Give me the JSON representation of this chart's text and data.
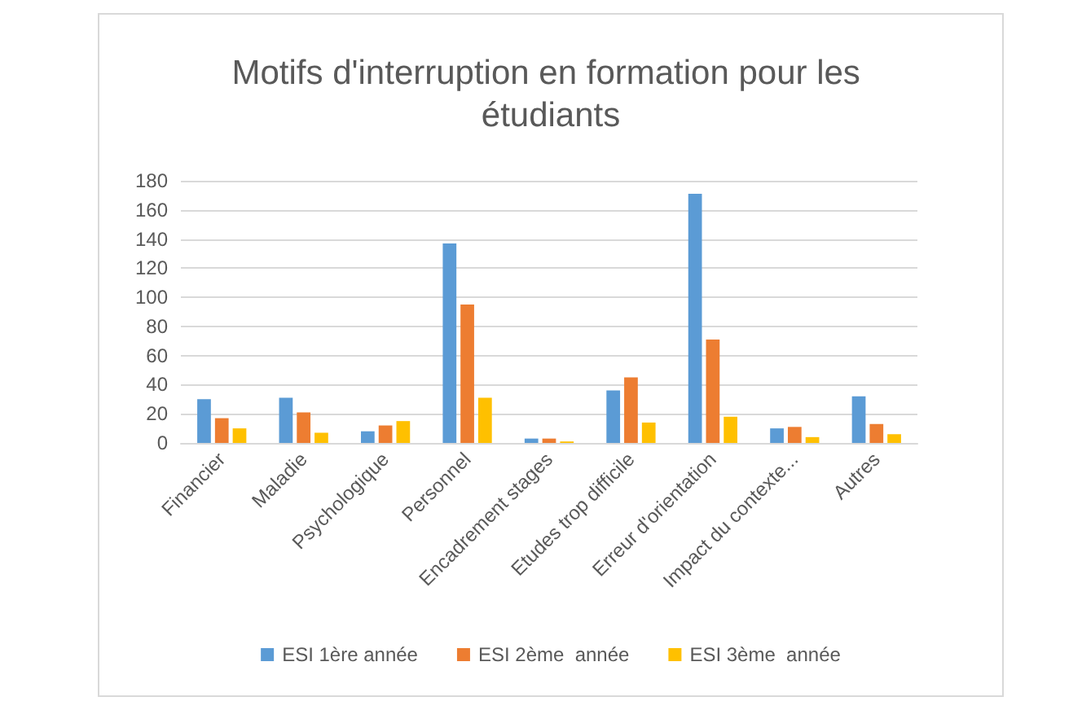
{
  "chart_data": {
    "type": "bar",
    "title": "Motifs d'interruption en formation pour les étudiants",
    "categories": [
      "Financier",
      "Maladie",
      "Psychologique",
      "Personnel",
      "Encadrement stages",
      "Etudes trop difficile",
      "Erreur d'orientation",
      "Impact du contexte...",
      "Autres"
    ],
    "series": [
      {
        "name": "ESI 1ère année",
        "color": "#5b9bd5",
        "values": [
          30,
          31,
          8,
          137,
          3,
          36,
          171,
          10,
          32
        ]
      },
      {
        "name": "ESI 2ème  année",
        "color": "#ed7d31",
        "values": [
          17,
          21,
          12,
          95,
          3,
          45,
          71,
          11,
          13
        ]
      },
      {
        "name": "ESI 3ème  année",
        "color": "#ffc000",
        "values": [
          10,
          7,
          15,
          31,
          1,
          14,
          18,
          4,
          6
        ]
      }
    ],
    "ylim": [
      0,
      180
    ],
    "yticks": [
      0,
      20,
      40,
      60,
      80,
      100,
      120,
      140,
      160,
      180
    ],
    "grid": "y",
    "legend": "bottom"
  }
}
